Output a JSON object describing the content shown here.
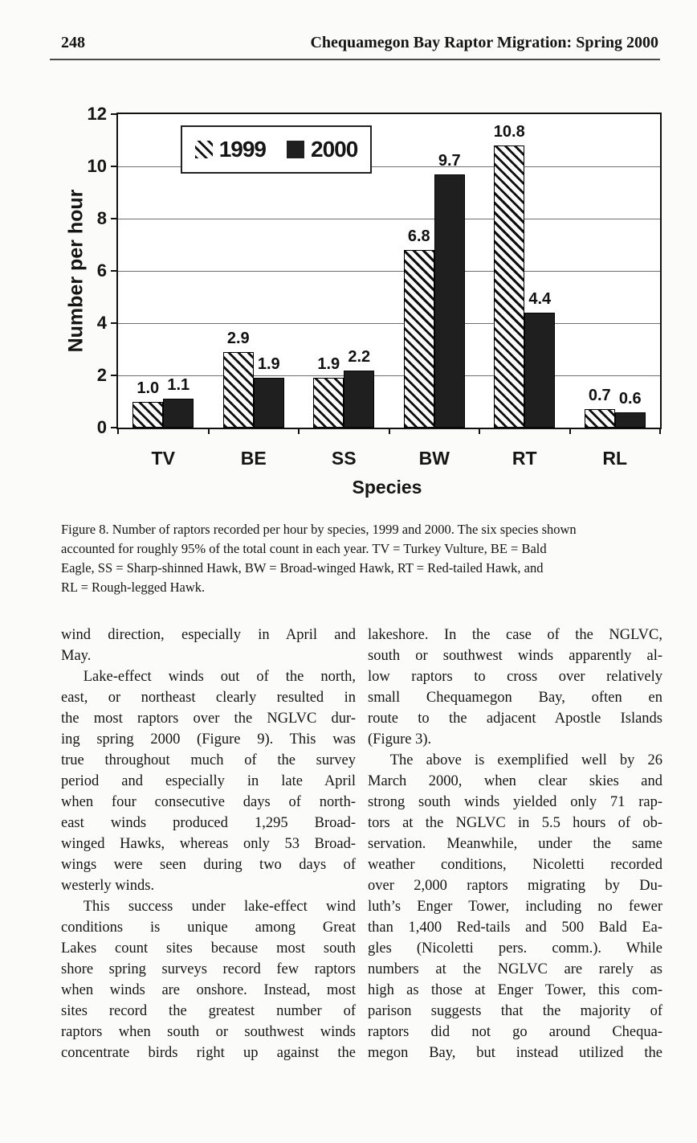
{
  "page": {
    "number": "248",
    "running_title": "Chequamegon Bay Raptor Migration: Spring 2000"
  },
  "chart_data": {
    "type": "bar",
    "categories": [
      "TV",
      "BE",
      "SS",
      "BW",
      "RT",
      "RL"
    ],
    "series": [
      {
        "name": "1999",
        "style": "hatched",
        "values": [
          1.0,
          2.9,
          1.9,
          6.8,
          10.8,
          0.7
        ]
      },
      {
        "name": "2000",
        "style": "solid",
        "color": "#1f1f1f",
        "values": [
          1.1,
          1.9,
          2.2,
          9.7,
          4.4,
          0.6
        ]
      }
    ],
    "xlabel": "Species",
    "ylabel": "Number per hour",
    "ylim": [
      0,
      12
    ],
    "yticks": [
      0,
      2,
      4,
      6,
      8,
      10,
      12
    ],
    "grid": true,
    "legend_position": "top-left-inside",
    "value_label_decimals": 1
  },
  "figure_caption": {
    "lines": [
      "Figure 8. Number of raptors recorded per hour by species, 1999 and 2000. The six species shown",
      "accounted for roughly 95% of the total count in each year. TV = Turkey Vulture, BE = Bald",
      "Eagle, SS = Sharp-shinned Hawk, BW = Broad-winged Hawk, RT = Red-tailed Hawk, and",
      "RL = Rough-legged Hawk."
    ]
  },
  "body": {
    "left_column": [
      {
        "text": "wind direction, especially in April and"
      },
      {
        "text": "May.",
        "end": true
      },
      {
        "text": "Lake-effect winds out of the north,",
        "indent": true
      },
      {
        "text": "east, or northeast clearly resulted in"
      },
      {
        "text": "the most raptors over the NGLVC dur-"
      },
      {
        "text": "ing spring 2000 (Figure 9). This was"
      },
      {
        "text": "true throughout much of the survey"
      },
      {
        "text": "period and especially in late April"
      },
      {
        "text": "when four consecutive days of north-"
      },
      {
        "text": "east winds produced 1,295 Broad-"
      },
      {
        "text": "winged Hawks, whereas only 53 Broad-"
      },
      {
        "text": "wings were seen during two days of"
      },
      {
        "text": "westerly winds.",
        "end": true
      },
      {
        "text": "This success under lake-effect wind",
        "indent": true
      },
      {
        "text": "conditions is unique among Great"
      },
      {
        "text": "Lakes count sites because most south"
      },
      {
        "text": "shore spring surveys record few raptors"
      },
      {
        "text": "when winds are onshore. Instead, most"
      },
      {
        "text": "sites record the greatest number of"
      },
      {
        "text": "raptors when south or southwest winds"
      },
      {
        "text": "concentrate birds right up against the"
      }
    ],
    "right_column": [
      {
        "text": "lakeshore. In the case of the NGLVC,"
      },
      {
        "text": "south or southwest winds apparently al-"
      },
      {
        "text": "low raptors to cross over relatively"
      },
      {
        "text": "small Chequamegon Bay, often en"
      },
      {
        "text": "route to the adjacent Apostle Islands"
      },
      {
        "text": "(Figure 3).",
        "end": true
      },
      {
        "text": "The above is exemplified well by 26",
        "indent": true
      },
      {
        "text": "March 2000, when clear skies and"
      },
      {
        "text": "strong south winds yielded only 71 rap-"
      },
      {
        "text": "tors at the NGLVC in 5.5 hours of ob-"
      },
      {
        "text": "servation. Meanwhile, under the same"
      },
      {
        "text": "weather conditions, Nicoletti recorded"
      },
      {
        "text": "over 2,000 raptors migrating by Du-"
      },
      {
        "text": "luth’s Enger Tower, including no fewer"
      },
      {
        "text": "than 1,400 Red-tails and 500 Bald Ea-"
      },
      {
        "text": "gles (Nicoletti pers. comm.). While"
      },
      {
        "text": "numbers at the NGLVC are rarely as"
      },
      {
        "text": "high as those at Enger Tower, this com-"
      },
      {
        "text": "parison suggests that the majority of"
      },
      {
        "text": "raptors did not go around Chequa-"
      },
      {
        "text": "megon Bay, but instead utilized the"
      }
    ]
  }
}
